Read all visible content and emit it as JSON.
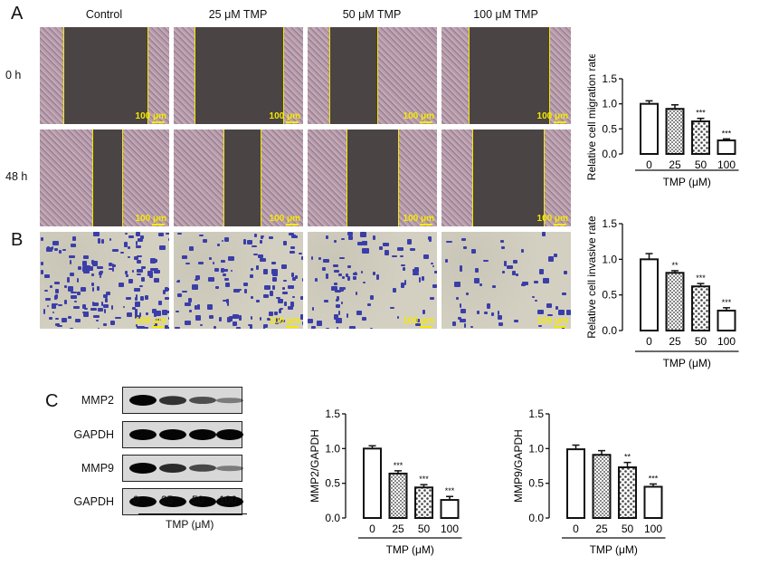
{
  "panel_labels": {
    "a": "A",
    "b": "B",
    "c": "C"
  },
  "panel_a": {
    "columns": [
      "Control",
      "25 μM TMP",
      "50 μM TMP",
      "100 μM TMP"
    ],
    "rows": [
      "0 h",
      "48 h"
    ],
    "scale_bar": "100 μm"
  },
  "panel_b": {
    "scale_bar": "100 μm"
  },
  "panel_c": {
    "blot_labels": [
      "MMP2",
      "GAPDH",
      "MMP9",
      "GAPDH"
    ],
    "lanes": [
      "0",
      "25",
      "50",
      "100"
    ],
    "xlabel": "TMP (μM)",
    "band_intensity": [
      [
        1.0,
        0.7,
        0.5,
        0.2
      ],
      [
        1.0,
        1.0,
        1.0,
        1.0
      ],
      [
        1.0,
        0.75,
        0.55,
        0.2
      ],
      [
        1.0,
        1.0,
        1.0,
        1.0
      ]
    ]
  },
  "colors": {
    "bar_stroke": "#111111",
    "scale_bar": "#f5e800",
    "wound_edge": "#f5e800"
  },
  "chart_data": [
    {
      "id": "migration",
      "type": "bar",
      "categories": [
        "0",
        "25",
        "50",
        "100"
      ],
      "values": [
        1.0,
        0.9,
        0.65,
        0.27
      ],
      "errors": [
        0.06,
        0.08,
        0.06,
        0.03
      ],
      "significance": [
        "",
        "",
        "***",
        "***"
      ],
      "fills": [
        "white",
        "checker",
        "dots",
        "white"
      ],
      "ylabel": "Relative cell migration rate",
      "xlabel": "TMP (μM)",
      "ylim": [
        0,
        1.5
      ],
      "yticks": [
        "0.0",
        "0.5",
        "1.0",
        "1.5"
      ]
    },
    {
      "id": "invasion",
      "type": "bar",
      "categories": [
        "0",
        "25",
        "50",
        "100"
      ],
      "values": [
        1.0,
        0.81,
        0.62,
        0.28
      ],
      "errors": [
        0.08,
        0.03,
        0.04,
        0.04
      ],
      "significance": [
        "",
        "**",
        "***",
        "***"
      ],
      "fills": [
        "white",
        "checker",
        "dots",
        "white"
      ],
      "ylabel": "Relative cell invasive rate",
      "xlabel": "TMP (μM)",
      "ylim": [
        0,
        1.5
      ],
      "yticks": [
        "0.0",
        "0.5",
        "1.0",
        "1.5"
      ]
    },
    {
      "id": "mmp2",
      "type": "bar",
      "categories": [
        "0",
        "25",
        "50",
        "100"
      ],
      "values": [
        1.0,
        0.64,
        0.44,
        0.26
      ],
      "errors": [
        0.04,
        0.04,
        0.04,
        0.05
      ],
      "significance": [
        "",
        "***",
        "***",
        "***"
      ],
      "fills": [
        "white",
        "checker",
        "dots",
        "white"
      ],
      "ylabel": "MMP2/GAPDH",
      "xlabel": "TMP (μM)",
      "ylim": [
        0,
        1.5
      ],
      "yticks": [
        "0.0",
        "0.5",
        "1.0",
        "1.5"
      ]
    },
    {
      "id": "mmp9",
      "type": "bar",
      "categories": [
        "0",
        "25",
        "50",
        "100"
      ],
      "values": [
        0.99,
        0.91,
        0.73,
        0.45
      ],
      "errors": [
        0.06,
        0.06,
        0.07,
        0.04
      ],
      "significance": [
        "",
        "",
        "**",
        "***"
      ],
      "fills": [
        "white",
        "checker",
        "dots",
        "white"
      ],
      "ylabel": "MMP9/GAPDH",
      "xlabel": "TMP (μM)",
      "ylim": [
        0,
        1.5
      ],
      "yticks": [
        "0.0",
        "0.5",
        "1.0",
        "1.5"
      ]
    }
  ]
}
